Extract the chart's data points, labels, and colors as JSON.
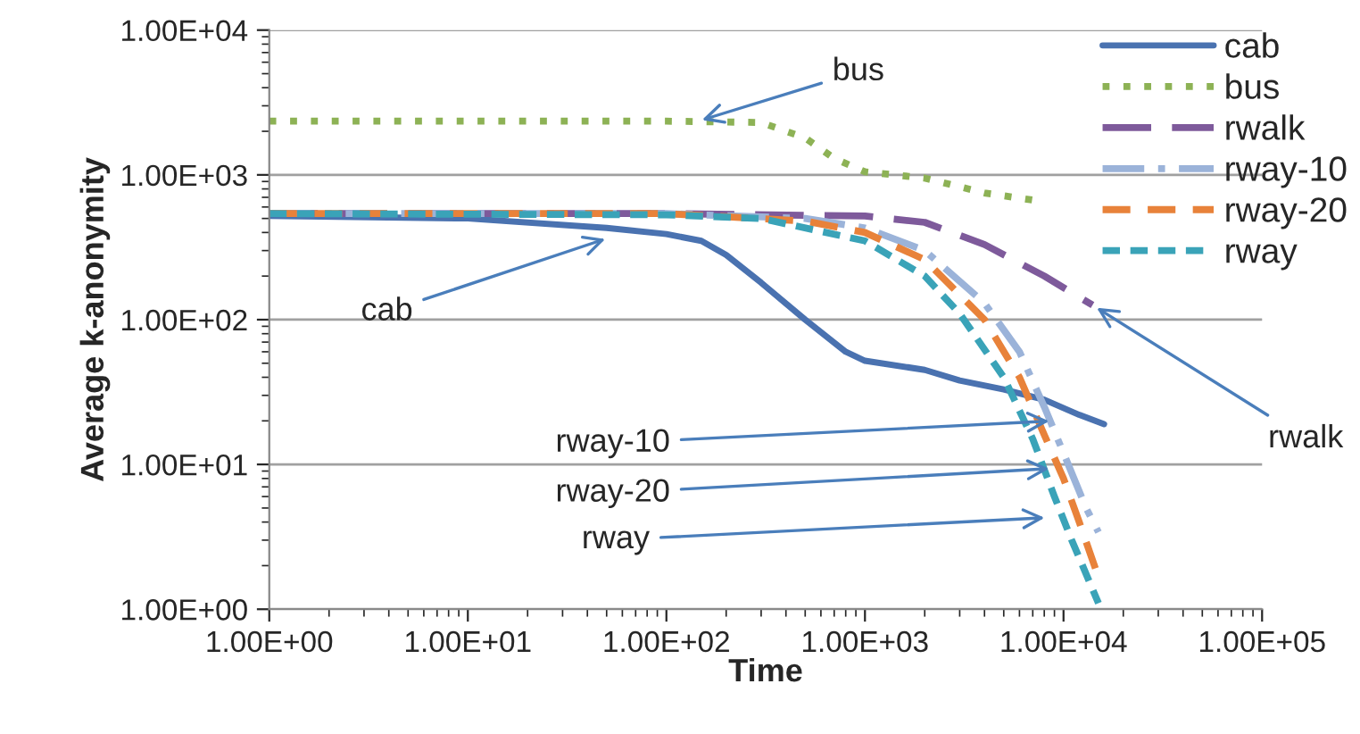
{
  "chart_data": {
    "type": "line",
    "xlabel": "Time",
    "ylabel": "Average k-anonymity",
    "log": "xy",
    "grid": "y",
    "legend": "top right",
    "xlim": [
      1,
      100000
    ],
    "ylim": [
      1,
      10000
    ],
    "xticks": [
      {
        "value": 1,
        "label": "1.00E+00"
      },
      {
        "value": 10,
        "label": "1.00E+01"
      },
      {
        "value": 100,
        "label": "1.00E+02"
      },
      {
        "value": 1000,
        "label": "1.00E+03"
      },
      {
        "value": 10000,
        "label": "1.00E+04"
      },
      {
        "value": 100000,
        "label": "1.00E+05"
      }
    ],
    "yticks": [
      {
        "value": 1,
        "label": "1.00E+00"
      },
      {
        "value": 10,
        "label": "1.00E+01"
      },
      {
        "value": 100,
        "label": "1.00E+02"
      },
      {
        "value": 1000,
        "label": "1.00E+03"
      },
      {
        "value": 10000,
        "label": "1.00E+04"
      }
    ],
    "series": [
      {
        "name": "cab",
        "color": "#4a72b0",
        "line_style": "solid",
        "x": [
          1,
          10,
          50,
          100,
          150,
          200,
          300,
          500,
          800,
          1000,
          2000,
          3000,
          5000,
          8000,
          12000,
          16000
        ],
        "values": [
          520,
          500,
          430,
          390,
          350,
          280,
          180,
          100,
          60,
          52,
          45,
          38,
          33,
          28,
          22,
          19
        ]
      },
      {
        "name": "bus",
        "color": "#8db255",
        "line_style": "dotted",
        "x": [
          1,
          100,
          300,
          500,
          700,
          1000,
          2000,
          4000,
          7000
        ],
        "values": [
          2350,
          2350,
          2300,
          1800,
          1300,
          1050,
          950,
          750,
          670
        ]
      },
      {
        "name": "rwalk",
        "color": "#7e5a9b",
        "line_style": "longdash",
        "x": [
          1,
          100,
          1000,
          2000,
          4000,
          8000,
          14000
        ],
        "values": [
          540,
          540,
          520,
          470,
          330,
          200,
          126
        ]
      },
      {
        "name": "rway-10",
        "color": "#9bb3d9",
        "line_style": "dashdot",
        "x": [
          1,
          100,
          500,
          1000,
          2000,
          4000,
          6000,
          8000,
          10000,
          13000,
          15000
        ],
        "values": [
          540,
          540,
          500,
          430,
          300,
          130,
          60,
          25,
          12,
          5,
          3.4
        ]
      },
      {
        "name": "rway-20",
        "color": "#e8823a",
        "line_style": "dashed",
        "x": [
          1,
          100,
          500,
          1000,
          2000,
          4000,
          6000,
          8000,
          10000,
          12000,
          14500
        ],
        "values": [
          540,
          540,
          480,
          400,
          260,
          100,
          40,
          16,
          8,
          4,
          1.9
        ]
      },
      {
        "name": "rway",
        "color": "#3aa3b8",
        "line_style": "shortdash",
        "x": [
          1,
          100,
          300,
          1000,
          2000,
          3000,
          5000,
          7000,
          9000,
          11000,
          15000
        ],
        "values": [
          540,
          530,
          500,
          350,
          200,
          110,
          40,
          15,
          6,
          3,
          1.1
        ]
      }
    ],
    "annotations": [
      {
        "text": "bus",
        "x": 143,
        "y": 2340
      },
      {
        "text": "cab",
        "x": 52,
        "y": 370
      },
      {
        "text": "rwalk",
        "x": 14000,
        "y": 126
      },
      {
        "text": "rway-10",
        "x": 8960,
        "y": 20
      },
      {
        "text": "rway-20",
        "x": 8960,
        "y": 9.4
      },
      {
        "text": "rway",
        "x": 8500,
        "y": 4.3
      }
    ]
  }
}
